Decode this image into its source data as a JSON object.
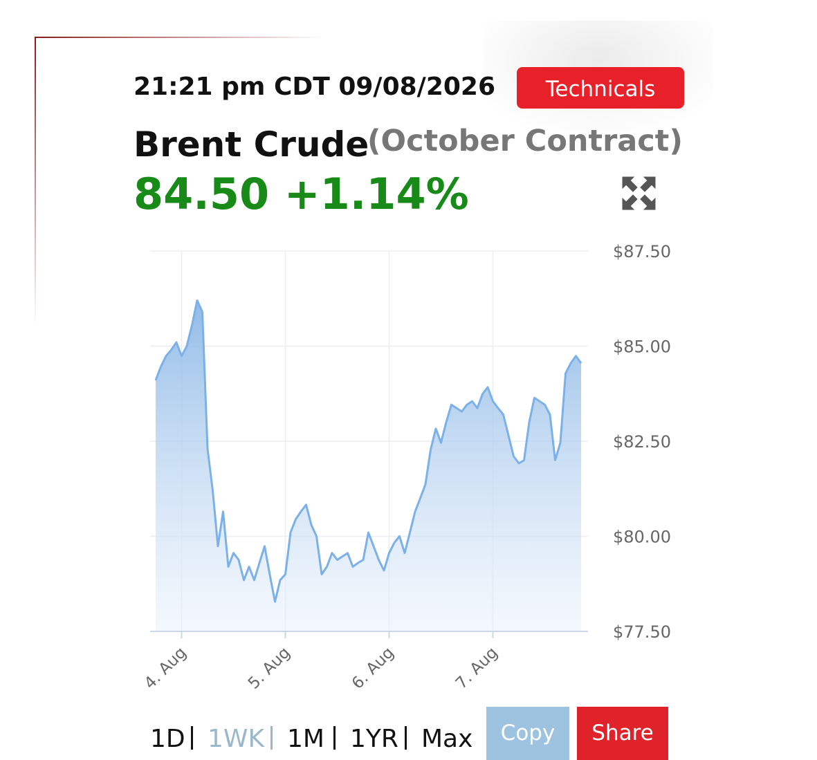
{
  "timestamp": "21:21 pm CDT 09/08/2026",
  "technicals_button": "Technicals",
  "instrument": "Brent Crude",
  "contract": "(October Contract)",
  "quote": "84.50 +1.14%",
  "chart_data": {
    "type": "area",
    "categories": [
      null,
      null,
      null,
      null,
      null,
      "4. Aug",
      null,
      null,
      null,
      null,
      null,
      null,
      null,
      null,
      null,
      null,
      null,
      null,
      null,
      null,
      null,
      null,
      null,
      null,
      null,
      "5. Aug",
      null,
      null,
      null,
      null,
      null,
      null,
      null,
      null,
      null,
      null,
      null,
      null,
      null,
      null,
      null,
      null,
      null,
      null,
      null,
      "6. Aug",
      null,
      null,
      null,
      null,
      null,
      null,
      null,
      null,
      null,
      null,
      null,
      null,
      null,
      null,
      null,
      null,
      null,
      null,
      null,
      "7. Aug",
      null,
      null,
      null,
      null,
      null,
      null,
      null,
      null,
      null,
      null,
      null,
      null,
      null,
      null,
      null,
      null,
      null
    ],
    "values": [
      84.1,
      84.46,
      84.74,
      84.9,
      85.1,
      84.74,
      85.0,
      85.55,
      86.2,
      85.9,
      82.3,
      81.2,
      79.74,
      80.65,
      79.2,
      79.56,
      79.38,
      78.85,
      79.2,
      78.85,
      79.3,
      79.74,
      78.99,
      78.28,
      78.85,
      79.0,
      80.1,
      80.45,
      80.65,
      80.83,
      80.3,
      80.0,
      79.0,
      79.2,
      79.56,
      79.38,
      79.47,
      79.56,
      79.2,
      79.3,
      79.38,
      80.1,
      79.74,
      79.38,
      79.1,
      79.56,
      79.83,
      80.0,
      79.56,
      80.1,
      80.65,
      81.0,
      81.37,
      82.28,
      82.83,
      82.46,
      83.0,
      83.46,
      83.37,
      83.28,
      83.46,
      83.55,
      83.37,
      83.74,
      83.92,
      83.55,
      83.37,
      83.2,
      82.65,
      82.1,
      81.92,
      82.0,
      83.0,
      83.64,
      83.55,
      83.46,
      83.2,
      82.0,
      82.46,
      84.28,
      84.55,
      84.74,
      84.55
    ],
    "color": "#7cb0e8",
    "ylim": [
      77.5,
      87.5
    ],
    "yticks": [
      {
        "value": 77.5,
        "label": "$77.50"
      },
      {
        "value": 80,
        "label": "$80.00"
      },
      {
        "value": 82.5,
        "label": "$82.50"
      },
      {
        "value": 85,
        "label": "$85.00"
      },
      {
        "value": 87.5,
        "label": "$87.50"
      }
    ],
    "grid": true
  },
  "ranges": [
    "1D",
    "1WK",
    "1M",
    "1YR",
    "Max"
  ],
  "active_range": 1,
  "copy_button": "Copy",
  "share_button": "Share"
}
